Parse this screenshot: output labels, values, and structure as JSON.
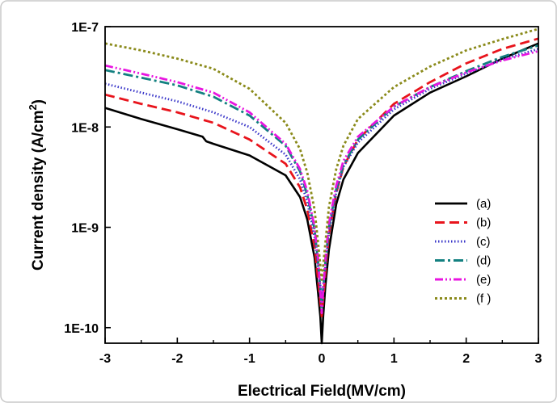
{
  "chart_data": {
    "type": "line",
    "title": "",
    "xlabel": "Electrical Field(MV/cm)",
    "ylabel": "Current density (A/cm",
    "ylabel_sup": "2",
    "ylabel_tail": ")",
    "xlim": [
      -3,
      3
    ],
    "ylim": [
      7e-11,
      1e-07
    ],
    "yscale": "log",
    "x_ticks": [
      -3,
      -2,
      -1,
      0,
      1,
      2,
      3
    ],
    "x_tick_labels": [
      "-3",
      "-2",
      "-1",
      "0",
      "1",
      "2",
      "3"
    ],
    "y_ticks": [
      1e-10,
      1e-09,
      1e-08,
      1e-07
    ],
    "y_tick_labels": [
      "1E-10",
      "1E-9",
      "1E-8",
      "1E-7"
    ],
    "legend_placement": "right",
    "series": [
      {
        "name": "(a)",
        "color": "#000000",
        "style": "solid",
        "points": [
          [
            -3,
            1.55e-08
          ],
          [
            -2.5,
            1.2e-08
          ],
          [
            -2,
            9.5e-09
          ],
          [
            -1.65,
            8e-09
          ],
          [
            -1.6,
            7.2e-09
          ],
          [
            -1.5,
            6.8e-09
          ],
          [
            -1.0,
            5.2e-09
          ],
          [
            -0.5,
            3.3e-09
          ],
          [
            -0.3,
            2e-09
          ],
          [
            -0.2,
            1.2e-09
          ],
          [
            -0.1,
            5e-10
          ],
          [
            -0.05,
            2.2e-10
          ],
          [
            -0.02,
            1.3e-10
          ],
          [
            0,
            7e-11
          ],
          [
            0.02,
            1.3e-10
          ],
          [
            0.05,
            2.6e-10
          ],
          [
            0.1,
            6e-10
          ],
          [
            0.2,
            1.7e-09
          ],
          [
            0.3,
            3e-09
          ],
          [
            0.5,
            5.5e-09
          ],
          [
            1.0,
            1.3e-08
          ],
          [
            1.5,
            2.2e-08
          ],
          [
            2.0,
            3.2e-08
          ],
          [
            2.5,
            4.8e-08
          ],
          [
            3,
            6.8e-08
          ]
        ]
      },
      {
        "name": "(b)",
        "color": "#e8141c",
        "style": "dashed",
        "points": [
          [
            -3,
            2.1e-08
          ],
          [
            -2.5,
            1.7e-08
          ],
          [
            -2,
            1.4e-08
          ],
          [
            -1.5,
            1.1e-08
          ],
          [
            -1.0,
            7.5e-09
          ],
          [
            -0.5,
            4.3e-09
          ],
          [
            -0.3,
            2.5e-09
          ],
          [
            -0.2,
            1.5e-09
          ],
          [
            -0.1,
            6.5e-10
          ],
          [
            -0.05,
            3e-10
          ],
          [
            0,
            1.3e-10
          ],
          [
            0.05,
            3.5e-10
          ],
          [
            0.1,
            8.5e-10
          ],
          [
            0.2,
            2.2e-09
          ],
          [
            0.3,
            4e-09
          ],
          [
            0.5,
            7.5e-09
          ],
          [
            1.0,
            1.7e-08
          ],
          [
            1.5,
            2.8e-08
          ],
          [
            2.0,
            4.3e-08
          ],
          [
            2.5,
            6e-08
          ],
          [
            3,
            7.6e-08
          ]
        ]
      },
      {
        "name": "(c)",
        "color": "#3a37c9",
        "style": "dotted",
        "points": [
          [
            -3,
            2.7e-08
          ],
          [
            -2.5,
            2.2e-08
          ],
          [
            -2,
            1.8e-08
          ],
          [
            -1.5,
            1.4e-08
          ],
          [
            -1.0,
            1e-08
          ],
          [
            -0.5,
            5.3e-09
          ],
          [
            -0.3,
            3e-09
          ],
          [
            -0.2,
            1.8e-09
          ],
          [
            -0.1,
            8e-10
          ],
          [
            -0.05,
            4e-10
          ],
          [
            0,
            2e-10
          ],
          [
            0.05,
            4e-10
          ],
          [
            0.1,
            9e-10
          ],
          [
            0.2,
            2.2e-09
          ],
          [
            0.3,
            4e-09
          ],
          [
            0.5,
            7e-09
          ],
          [
            1.0,
            1.5e-08
          ],
          [
            1.5,
            2.4e-08
          ],
          [
            2.0,
            3.4e-08
          ],
          [
            2.5,
            4.7e-08
          ],
          [
            3,
            6e-08
          ]
        ]
      },
      {
        "name": "(d)",
        "color": "#138080",
        "style": "dashdot",
        "points": [
          [
            -3,
            3.7e-08
          ],
          [
            -2.5,
            3.1e-08
          ],
          [
            -2,
            2.6e-08
          ],
          [
            -1.5,
            2e-08
          ],
          [
            -1.0,
            1.3e-08
          ],
          [
            -0.5,
            6.5e-09
          ],
          [
            -0.3,
            3.6e-09
          ],
          [
            -0.2,
            2.1e-09
          ],
          [
            -0.1,
            9.5e-10
          ],
          [
            -0.05,
            4.5e-10
          ],
          [
            0,
            1.6e-10
          ],
          [
            0.05,
            4.5e-10
          ],
          [
            0.1,
            1e-09
          ],
          [
            0.2,
            2.4e-09
          ],
          [
            0.3,
            4.2e-09
          ],
          [
            0.5,
            7.5e-09
          ],
          [
            1.0,
            1.6e-08
          ],
          [
            1.5,
            2.5e-08
          ],
          [
            2.0,
            3.6e-08
          ],
          [
            2.5,
            5e-08
          ],
          [
            3,
            6.5e-08
          ]
        ]
      },
      {
        "name": "(e)",
        "color": "#e815e0",
        "style": "dashdotdot",
        "points": [
          [
            -3,
            4.1e-08
          ],
          [
            -2.5,
            3.4e-08
          ],
          [
            -2,
            2.8e-08
          ],
          [
            -1.5,
            2.2e-08
          ],
          [
            -1.0,
            1.4e-08
          ],
          [
            -0.5,
            6.8e-09
          ],
          [
            -0.3,
            3.8e-09
          ],
          [
            -0.2,
            2.3e-09
          ],
          [
            -0.1,
            1e-09
          ],
          [
            -0.05,
            5e-10
          ],
          [
            0,
            1.4e-10
          ],
          [
            0.05,
            5e-10
          ],
          [
            0.1,
            1.1e-09
          ],
          [
            0.2,
            2.6e-09
          ],
          [
            0.3,
            4.6e-09
          ],
          [
            0.5,
            8e-09
          ],
          [
            1.0,
            1.6e-08
          ],
          [
            1.5,
            2.5e-08
          ],
          [
            2.0,
            3.5e-08
          ],
          [
            2.5,
            4.6e-08
          ],
          [
            3,
            5.7e-08
          ]
        ]
      },
      {
        "name": "(f )",
        "color": "#8a8a1a",
        "style": "shortdot",
        "points": [
          [
            -3,
            6.8e-08
          ],
          [
            -2.5,
            5.8e-08
          ],
          [
            -2,
            4.8e-08
          ],
          [
            -1.5,
            3.8e-08
          ],
          [
            -1.0,
            2.4e-08
          ],
          [
            -0.5,
            1.1e-08
          ],
          [
            -0.3,
            6e-09
          ],
          [
            -0.2,
            3.5e-09
          ],
          [
            -0.1,
            1.5e-09
          ],
          [
            -0.05,
            7e-10
          ],
          [
            0,
            3e-10
          ],
          [
            0.05,
            7e-10
          ],
          [
            0.1,
            1.6e-09
          ],
          [
            0.2,
            3.8e-09
          ],
          [
            0.3,
            6.5e-09
          ],
          [
            0.5,
            1.2e-08
          ],
          [
            1.0,
            2.5e-08
          ],
          [
            1.5,
            4e-08
          ],
          [
            2.0,
            5.8e-08
          ],
          [
            2.5,
            7.5e-08
          ],
          [
            3,
            9.5e-08
          ]
        ]
      }
    ]
  }
}
